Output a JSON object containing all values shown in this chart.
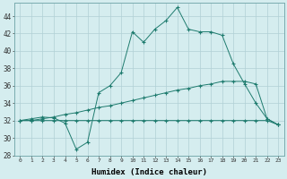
{
  "xlabel": "Humidex (Indice chaleur)",
  "background_color": "#d5edef",
  "line_color": "#1e7b6e",
  "grid_color": "#b0d0d5",
  "xlim": [
    -0.5,
    23.5
  ],
  "ylim": [
    28,
    45.5
  ],
  "xticks": [
    0,
    1,
    2,
    3,
    4,
    5,
    6,
    7,
    8,
    9,
    10,
    11,
    12,
    13,
    14,
    15,
    16,
    17,
    18,
    19,
    20,
    21,
    22,
    23
  ],
  "yticks": [
    28,
    30,
    32,
    34,
    36,
    38,
    40,
    42,
    44
  ],
  "line1_x": [
    0,
    1,
    2,
    3,
    4,
    5,
    6,
    7,
    8,
    9,
    10,
    11,
    12,
    13,
    14,
    15,
    16,
    17,
    18,
    19,
    20,
    21,
    22,
    23
  ],
  "line1_y": [
    32,
    32,
    32,
    32,
    32,
    32,
    32,
    32,
    32,
    32,
    32,
    32,
    32,
    32,
    32,
    32,
    32,
    32,
    32,
    32,
    32,
    32,
    32,
    31.5
  ],
  "line2_x": [
    0,
    1,
    2,
    3,
    4,
    5,
    6,
    7,
    8,
    9,
    10,
    11,
    12,
    13,
    14,
    15,
    16,
    17,
    18,
    19,
    20,
    21,
    22,
    23
  ],
  "line2_y": [
    32,
    32.0,
    32.2,
    32.4,
    32.7,
    32.9,
    33.2,
    33.5,
    33.7,
    34.0,
    34.3,
    34.6,
    34.9,
    35.2,
    35.5,
    35.7,
    36.0,
    36.2,
    36.5,
    36.5,
    36.5,
    36.2,
    32.2,
    31.5
  ],
  "line3_x": [
    0,
    1,
    2,
    3,
    4,
    5,
    6,
    7,
    8,
    9,
    10,
    11,
    12,
    13,
    14,
    15,
    16,
    17,
    18,
    19,
    20,
    21,
    22,
    23
  ],
  "line3_y": [
    32,
    32.2,
    32.4,
    32.3,
    31.7,
    28.7,
    29.5,
    35.2,
    36.0,
    37.5,
    42.2,
    41.0,
    42.5,
    43.5,
    45.0,
    42.5,
    42.2,
    42.2,
    41.8,
    38.5,
    36.2,
    34.0,
    32.2,
    31.5
  ]
}
